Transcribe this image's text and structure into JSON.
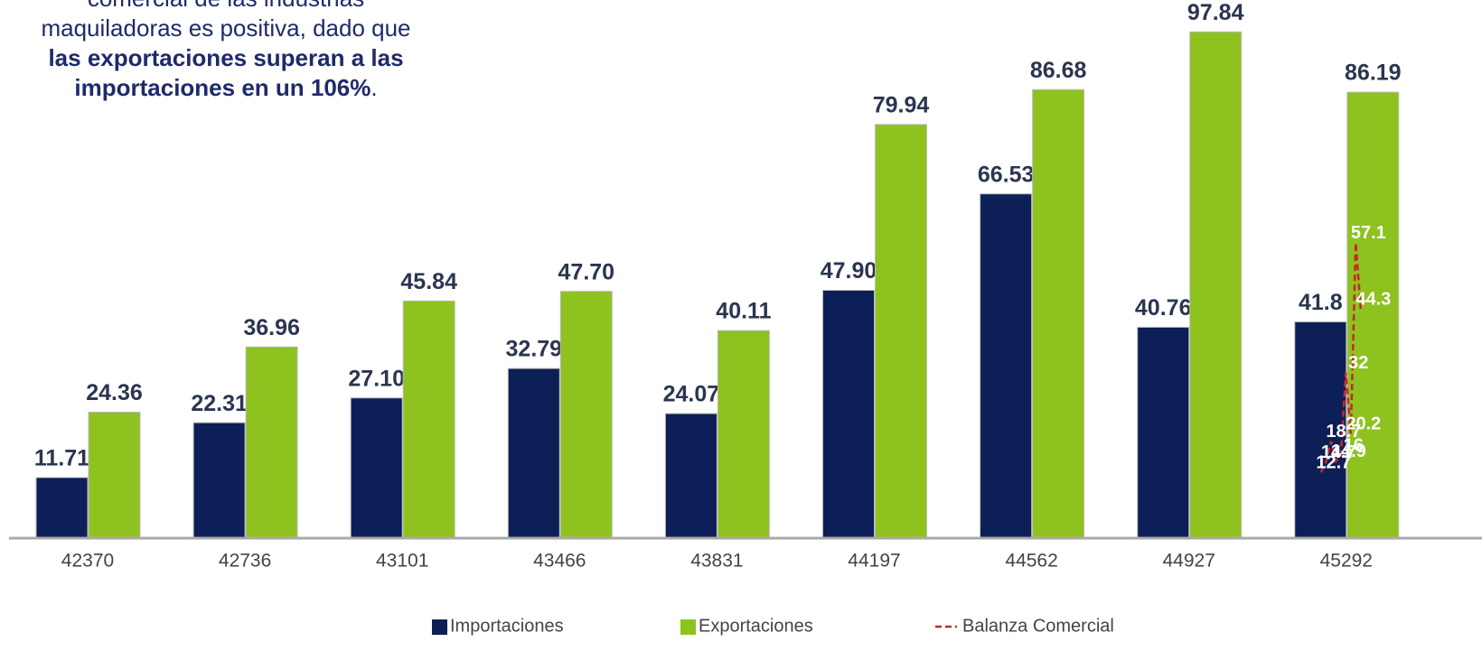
{
  "note": {
    "lines": [
      "comercial de las industrias",
      "maquiladoras es positiva, dado que"
    ],
    "bold": "las exportaciones superan a las importaciones en un 106%",
    "end": "."
  },
  "chart_data": {
    "type": "bar",
    "categories": [
      "42370",
      "42736",
      "43101",
      "43466",
      "43831",
      "44197",
      "44562",
      "44927",
      "45292"
    ],
    "ylim": [
      0,
      104
    ],
    "series": [
      {
        "name": "Importaciones",
        "color": "#0c1f56",
        "values": [
          11.71,
          22.31,
          27.1,
          32.79,
          24.07,
          47.9,
          66.53,
          40.76,
          41.8
        ],
        "value_labels": [
          "11.71",
          "22.31",
          "27.10",
          "32.79",
          "24.07",
          "47.90",
          "66.53",
          "40.76",
          "41.8"
        ]
      },
      {
        "name": "Exportaciones",
        "color": "#8dc21f",
        "values": [
          24.36,
          36.96,
          45.84,
          47.7,
          40.11,
          79.94,
          86.68,
          97.84,
          86.19
        ],
        "value_labels": [
          "24.36",
          "36.96",
          "45.84",
          "47.70",
          "40.11",
          "79.94",
          "86.68",
          "97.84",
          "86.19"
        ]
      },
      {
        "name": "Balanza Comercial",
        "type": "line",
        "color": "#c8262d",
        "values": [
          12.7,
          14.7,
          18.7,
          14.9,
          16.0,
          32.0,
          20.2,
          57.1,
          44.3
        ]
      }
    ]
  }
}
